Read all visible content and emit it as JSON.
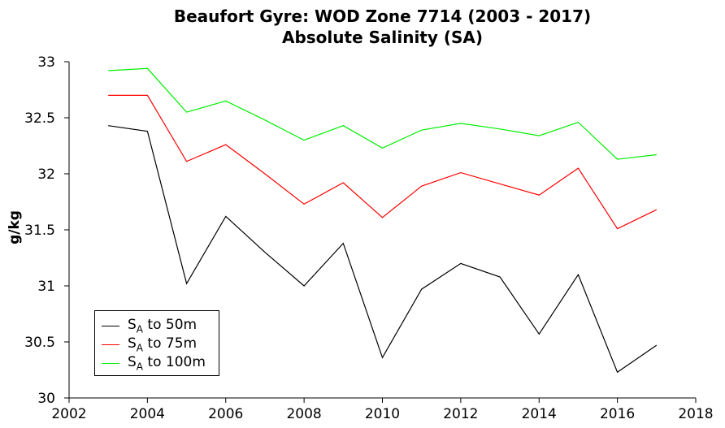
{
  "chart_data": {
    "type": "line",
    "title": "Beaufort Gyre: WOD Zone 7714 (2003 - 2017)",
    "subtitle": "Absolute Salinity (SA)",
    "xlabel": "",
    "ylabel": "g/kg",
    "xlim": [
      2002,
      2018
    ],
    "ylim": [
      30,
      33
    ],
    "x_ticks": [
      2002,
      2004,
      2006,
      2008,
      2010,
      2012,
      2014,
      2016,
      2018
    ],
    "y_ticks": [
      30,
      30.5,
      31,
      31.5,
      32,
      32.5,
      33
    ],
    "grid": false,
    "legend_position": "bottom-left",
    "x": [
      2003,
      2004,
      2005,
      2006,
      2007,
      2008,
      2009,
      2010,
      2011,
      2012,
      2013,
      2014,
      2015,
      2016,
      2017
    ],
    "series": [
      {
        "name_base": "S",
        "name_sub": "A",
        "name_rest": " to 50m",
        "color": "#000000",
        "values": [
          32.43,
          32.38,
          31.02,
          31.62,
          31.3,
          31.0,
          31.38,
          30.36,
          30.97,
          31.2,
          31.08,
          30.57,
          31.1,
          30.23,
          30.47
        ]
      },
      {
        "name_base": "S",
        "name_sub": "A",
        "name_rest": " to 75m",
        "color": "#ff0000",
        "values": [
          32.7,
          32.7,
          32.11,
          32.26,
          32.0,
          31.73,
          31.92,
          31.61,
          31.89,
          32.01,
          31.91,
          31.81,
          32.05,
          31.51,
          31.68
        ]
      },
      {
        "name_base": "S",
        "name_sub": "A",
        "name_rest": " to 100m",
        "color": "#00ee00",
        "values": [
          32.92,
          32.94,
          32.55,
          32.65,
          32.48,
          32.3,
          32.43,
          32.23,
          32.39,
          32.45,
          32.4,
          32.34,
          32.46,
          32.13,
          32.17
        ]
      }
    ]
  }
}
